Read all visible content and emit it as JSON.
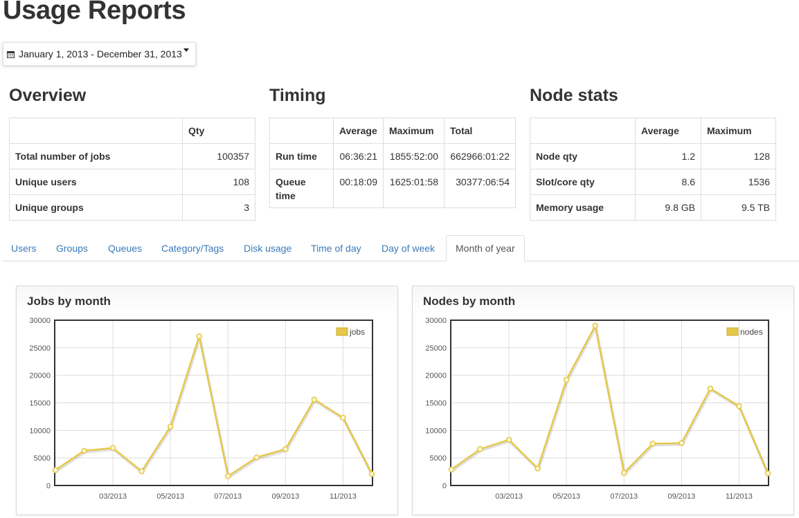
{
  "page": {
    "title": "Usage Reports"
  },
  "date_range": {
    "label": "January 1, 2013 - December 31, 2013",
    "icon": "calendar-icon"
  },
  "overview": {
    "title": "Overview",
    "header": [
      "",
      "Qty"
    ],
    "rows": [
      {
        "label": "Total number of jobs",
        "qty": "100357"
      },
      {
        "label": "Unique users",
        "qty": "108"
      },
      {
        "label": "Unique groups",
        "qty": "3"
      }
    ]
  },
  "timing": {
    "title": "Timing",
    "header": [
      "",
      "Average",
      "Maximum",
      "Total"
    ],
    "rows": [
      {
        "label": "Run time",
        "average": "06:36:21",
        "maximum": "1855:52:00",
        "total": "662966:01:22"
      },
      {
        "label": "Queue time",
        "average": "00:18:09",
        "maximum": "1625:01:58",
        "total": "30377:06:54"
      }
    ]
  },
  "node_stats": {
    "title": "Node stats",
    "header": [
      "",
      "Average",
      "Maximum"
    ],
    "rows": [
      {
        "label": "Node qty",
        "average": "1.2",
        "maximum": "128"
      },
      {
        "label": "Slot/core qty",
        "average": "8.6",
        "maximum": "1536"
      },
      {
        "label": "Memory usage",
        "average": "9.8 GB",
        "maximum": "9.5 TB"
      }
    ]
  },
  "tabs": [
    {
      "label": "Users",
      "active": false
    },
    {
      "label": "Groups",
      "active": false
    },
    {
      "label": "Queues",
      "active": false
    },
    {
      "label": "Category/Tags",
      "active": false
    },
    {
      "label": "Disk usage",
      "active": false
    },
    {
      "label": "Time of day",
      "active": false
    },
    {
      "label": "Day of week",
      "active": false
    },
    {
      "label": "Month of year",
      "active": true
    }
  ],
  "colors": {
    "series": "#e5c84a",
    "link": "#3a7ab8",
    "grid": "#dddddd",
    "axis": "#333333"
  },
  "chart_data": [
    {
      "type": "line",
      "title": "Jobs by month",
      "x": [
        "01/2013",
        "02/2013",
        "03/2013",
        "04/2013",
        "05/2013",
        "06/2013",
        "07/2013",
        "08/2013",
        "09/2013",
        "10/2013",
        "11/2013",
        "12/2013"
      ],
      "x_tick_labels": [
        "03/2013",
        "05/2013",
        "07/2013",
        "09/2013",
        "11/2013"
      ],
      "series": [
        {
          "name": "jobs",
          "values": [
            2800,
            6300,
            6800,
            2600,
            10700,
            27100,
            1700,
            5100,
            6600,
            15600,
            12300,
            2100
          ]
        }
      ],
      "ylim": [
        0,
        30000
      ],
      "y_ticks": [
        "0",
        "5000",
        "10000",
        "15000",
        "20000",
        "25000",
        "30000"
      ],
      "grid": true,
      "legend": "top-right"
    },
    {
      "type": "line",
      "title": "Nodes by month",
      "x": [
        "01/2013",
        "02/2013",
        "03/2013",
        "04/2013",
        "05/2013",
        "06/2013",
        "07/2013",
        "08/2013",
        "09/2013",
        "10/2013",
        "11/2013",
        "12/2013"
      ],
      "x_tick_labels": [
        "03/2013",
        "05/2013",
        "07/2013",
        "09/2013",
        "11/2013"
      ],
      "series": [
        {
          "name": "nodes",
          "values": [
            2900,
            6600,
            8300,
            3100,
            19200,
            29000,
            2300,
            7600,
            7700,
            17600,
            14400,
            2200
          ]
        }
      ],
      "ylim": [
        0,
        30000
      ],
      "y_ticks": [
        "0",
        "5000",
        "10000",
        "15000",
        "20000",
        "25000",
        "30000"
      ],
      "grid": true,
      "legend": "top-right"
    }
  ]
}
